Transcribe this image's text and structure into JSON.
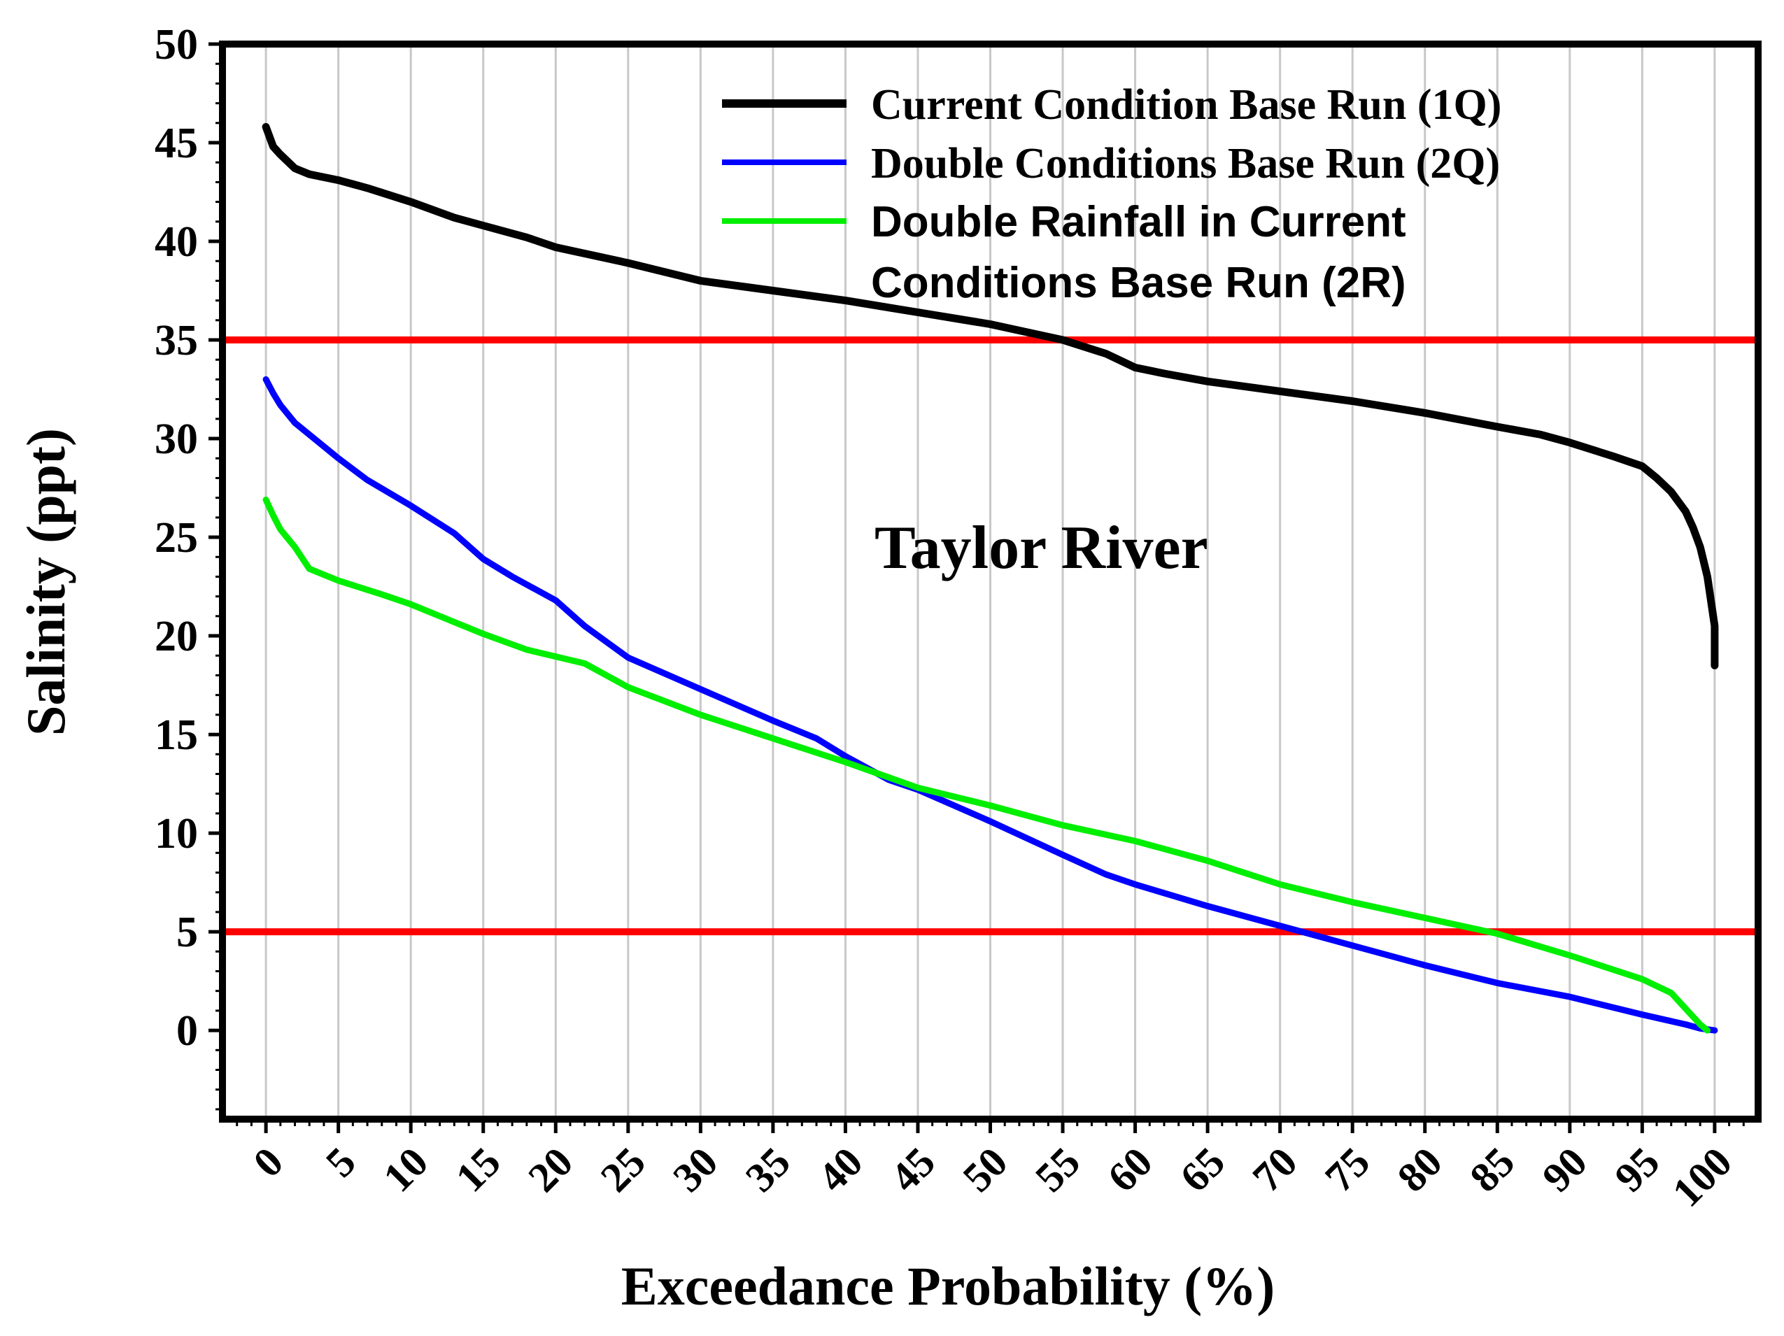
{
  "chart_data": {
    "type": "line",
    "title": "",
    "xlabel": "Exceedance Probability (%)",
    "ylabel": "Salinity (ppt)",
    "xlim": [
      -3,
      103
    ],
    "ylim": [
      -4.5,
      50
    ],
    "x_ticks": [
      0,
      5,
      10,
      15,
      20,
      25,
      30,
      35,
      40,
      45,
      50,
      55,
      60,
      65,
      70,
      75,
      80,
      85,
      90,
      95,
      100
    ],
    "y_ticks": [
      0,
      5,
      10,
      15,
      20,
      25,
      30,
      35,
      40,
      45,
      50
    ],
    "grid": "vertical",
    "legend_position": "top-right",
    "annotation": "Taylor River",
    "reference_lines": [
      {
        "y": 35,
        "color": "#ff0000"
      },
      {
        "y": 5,
        "color": "#ff0000"
      }
    ],
    "series": [
      {
        "name": "Current Condition Base Run (1Q)",
        "color": "#000000",
        "x": [
          0,
          0.5,
          1,
          2,
          3,
          5,
          7,
          10,
          13,
          15,
          18,
          20,
          25,
          30,
          35,
          40,
          45,
          50,
          55,
          58,
          60,
          62,
          65,
          70,
          75,
          80,
          85,
          88,
          90,
          93,
          95,
          96,
          97,
          98,
          98.5,
          99,
          99.5,
          100,
          100
        ],
        "y": [
          45.8,
          44.8,
          44.4,
          43.7,
          43.4,
          43.1,
          42.7,
          42.0,
          41.2,
          40.8,
          40.2,
          39.7,
          38.9,
          38.0,
          37.5,
          37.0,
          36.4,
          35.8,
          35.0,
          34.3,
          33.6,
          33.3,
          32.9,
          32.4,
          31.9,
          31.3,
          30.6,
          30.2,
          29.8,
          29.1,
          28.6,
          28.0,
          27.3,
          26.3,
          25.5,
          24.5,
          23.0,
          20.5,
          18.5
        ]
      },
      {
        "name": "Double Conditions Base Run (2Q)",
        "color": "#0000ff",
        "x": [
          0,
          0.5,
          1,
          2,
          5,
          7,
          10,
          13,
          15,
          17,
          20,
          22,
          25,
          30,
          35,
          38,
          40,
          43,
          45,
          50,
          55,
          58,
          60,
          65,
          70,
          75,
          80,
          85,
          90,
          95,
          98,
          99,
          100
        ],
        "y": [
          33.0,
          32.3,
          31.7,
          30.8,
          29.0,
          27.9,
          26.6,
          25.2,
          23.9,
          23.0,
          21.8,
          20.5,
          18.9,
          17.3,
          15.7,
          14.8,
          13.9,
          12.7,
          12.2,
          10.6,
          8.9,
          7.9,
          7.4,
          6.3,
          5.3,
          4.3,
          3.3,
          2.4,
          1.7,
          0.8,
          0.3,
          0.1,
          0.0
        ]
      },
      {
        "name": "Double Rainfall in Current Conditions Base Run (2R)",
        "color": "#00ee00",
        "x": [
          0,
          0.5,
          1,
          2,
          3,
          5,
          8,
          10,
          13,
          15,
          18,
          22,
          25,
          30,
          35,
          40,
          45,
          50,
          55,
          60,
          65,
          70,
          75,
          80,
          85,
          90,
          95,
          97,
          98,
          99,
          99.5
        ],
        "y": [
          26.9,
          26.1,
          25.4,
          24.5,
          23.4,
          22.8,
          22.1,
          21.6,
          20.7,
          20.1,
          19.3,
          18.6,
          17.4,
          16.0,
          14.8,
          13.6,
          12.3,
          11.4,
          10.4,
          9.6,
          8.6,
          7.4,
          6.5,
          5.7,
          4.9,
          3.8,
          2.6,
          1.9,
          1.1,
          0.3,
          0.0
        ]
      }
    ]
  },
  "legend": {
    "series_1": "Current Condition Base Run (1Q)",
    "series_2": "Double Conditions Base Run (2Q)",
    "series_3_line1": "Double Rainfall in Current",
    "series_3_line2": "Conditions Base Run (2R)"
  }
}
